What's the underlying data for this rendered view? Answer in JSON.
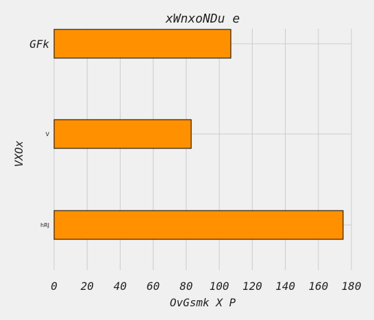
{
  "chart_data": {
    "type": "bar",
    "orientation": "horizontal",
    "title": "xWnxoNDu e",
    "xlabel": "OvGsmk X P",
    "ylabel": "VXOx",
    "categories": [
      "GFk",
      "V",
      "hRJ"
    ],
    "values": [
      107,
      83,
      175
    ],
    "xlim": [
      0,
      180
    ],
    "xticks": [
      0,
      20,
      40,
      60,
      80,
      100,
      120,
      140,
      160,
      180
    ],
    "bar_color": "#ff9100",
    "grid": true
  }
}
